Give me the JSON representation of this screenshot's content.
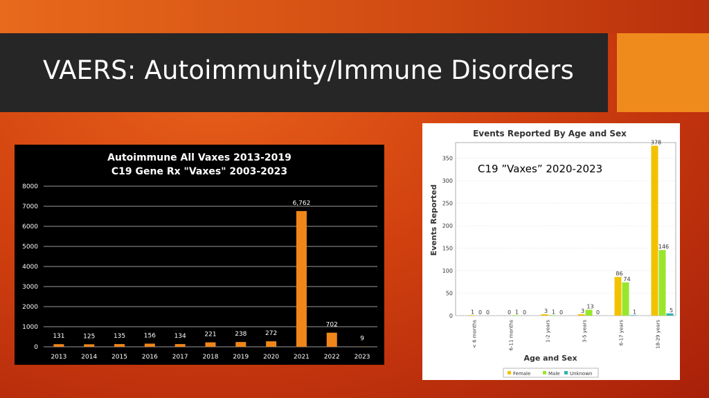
{
  "slide": {
    "title": "VAERS: Autoimmunity/Immune Disorders"
  },
  "colors": {
    "bar_orange": "#f0861a",
    "female": "#f2c200",
    "male": "#99e62e",
    "unknown": "#2fb5b0",
    "title_bar": "#262626",
    "accent": "#ef8a1c"
  },
  "chart_data": [
    {
      "type": "bar",
      "title": "Autoimmune All Vaxes 2013-2019",
      "subtitle": "C19 Gene Rx \"Vaxes\" 2003-2023",
      "categories": [
        "2013",
        "2014",
        "2015",
        "2016",
        "2017",
        "2018",
        "2019",
        "2020",
        "2021",
        "2022",
        "2023"
      ],
      "values": [
        131,
        125,
        135,
        156,
        134,
        221,
        238,
        272,
        6762,
        702,
        9
      ],
      "value_labels": [
        "131",
        "125",
        "135",
        "156",
        "134",
        "221",
        "238",
        "272",
        "6,762",
        "702",
        "9"
      ],
      "ylim": [
        0,
        8000
      ],
      "yticks": [
        0,
        1000,
        2000,
        3000,
        4000,
        5000,
        6000,
        7000,
        8000
      ],
      "grid": true
    },
    {
      "type": "bar",
      "title": "Events Reported By Age and Sex",
      "annotation": "C19 ”Vaxes” 2020-2023",
      "xlabel": "Age and Sex",
      "ylabel": "Events Reported",
      "categories": [
        "< 6 months",
        "6-11 months",
        "1-2 years",
        "3-5 years",
        "6-17 years",
        "18-29 years"
      ],
      "series": [
        {
          "name": "Female",
          "values": [
            1,
            0,
            3,
            3,
            86,
            378
          ]
        },
        {
          "name": "Male",
          "values": [
            0,
            1,
            1,
            13,
            74,
            146
          ]
        },
        {
          "name": "Unknown",
          "values": [
            0,
            0,
            0,
            0,
            1,
            5
          ]
        }
      ],
      "ylim": [
        0,
        385
      ],
      "yticks": [
        0,
        50,
        100,
        150,
        200,
        250,
        300,
        350
      ],
      "grid": true,
      "legend": "bottom"
    }
  ]
}
